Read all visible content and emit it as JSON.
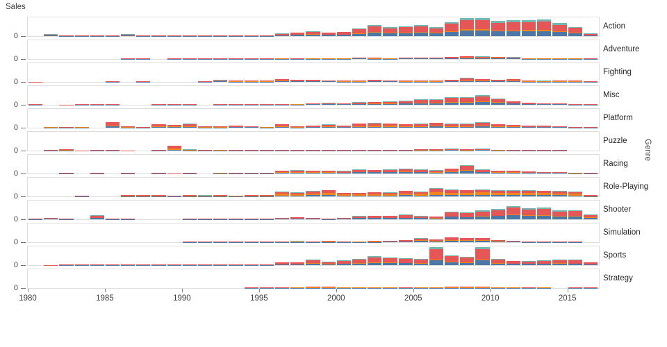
{
  "chart_data": {
    "type": "bar",
    "stacked": true,
    "description_visible_text_only": "Faceted stacked bar chart; one row per genre; only a 0 tick on each y axis",
    "y_axis": {
      "title": "Sales",
      "zero_tick_label": "0"
    },
    "facet_axis_title": "Genre",
    "x_axis": {
      "year_start": 1980,
      "year_end": 2016,
      "tick_labels": [
        "1980",
        "1985",
        "1990",
        "1995",
        "2000",
        "2005",
        "2010",
        "2015"
      ]
    },
    "legend_position": "none",
    "grid": false,
    "segments_bottom_to_top": [
      {
        "id": "segment-blue",
        "color": "#4c78a8"
      },
      {
        "id": "segment-orange",
        "color": "#f58518"
      },
      {
        "id": "segment-red",
        "color": "#e45756"
      },
      {
        "id": "segment-teal",
        "color": "#72b7b2"
      }
    ],
    "facets": [
      {
        "genre": "Action",
        "totals": [
          0.3,
          14.8,
          6.5,
          2.9,
          1.9,
          3.5,
          13.7,
          1.1,
          1.8,
          4.6,
          6.4,
          6.8,
          3.8,
          1.8,
          1.6,
          3.6,
          20.6,
          27.6,
          39.4,
          27.8,
          34.0,
          59.4,
          86.8,
          67.9,
          76.3,
          85.5,
          67.3,
          106.5,
          136.4,
          139.4,
          117.6,
          118.9,
          122.0,
          125.2,
          99.0,
          70.7,
          19.9
        ],
        "segment_fractions": [
          0.3,
          0.07,
          0.5,
          0.13
        ]
      },
      {
        "genre": "Adventure",
        "totals": [
          0,
          0,
          0,
          0.4,
          0,
          0,
          1.0,
          4.4,
          0.3,
          1.2,
          1.6,
          1.6,
          1.1,
          1.0,
          2.0,
          3.3,
          6.2,
          5.1,
          6.3,
          6.3,
          6.3,
          11.7,
          10.4,
          8.0,
          10.5,
          11.1,
          12.0,
          15.9,
          20.8,
          19.0,
          17.0,
          14.2,
          6.5,
          6.0,
          5.7,
          8.0,
          2.7
        ],
        "segment_fractions": [
          0.26,
          0.23,
          0.44,
          0.07
        ]
      },
      {
        "genre": "Fighting",
        "totals": [
          0.8,
          0,
          0,
          0,
          0,
          1.1,
          0,
          5.4,
          0,
          0.6,
          0.3,
          3.5,
          14.2,
          10.1,
          11.5,
          10.9,
          20.0,
          16.5,
          15.8,
          13.3,
          12.3,
          11.5,
          15.8,
          13.0,
          10.9,
          12.0,
          11.0,
          15.4,
          30.9,
          21.0,
          14.6,
          20.2,
          12.4,
          8.1,
          11.3,
          9.6,
          3.5
        ],
        "segment_fractions": [
          0.21,
          0.22,
          0.5,
          0.07
        ]
      },
      {
        "genre": "Misc",
        "totals": [
          2.7,
          0,
          0.9,
          2.1,
          1.5,
          1.2,
          0,
          0,
          1.4,
          1.3,
          1.2,
          0.7,
          1.6,
          1.2,
          1.4,
          2.0,
          4.3,
          8.0,
          12.6,
          14.0,
          11.9,
          19.7,
          23.6,
          25.4,
          30.4,
          42.7,
          43.7,
          57.8,
          56.4,
          71.5,
          50.0,
          28.0,
          15.0,
          11.6,
          9.3,
          5.8,
          1.3
        ],
        "segment_fractions": [
          0.3,
          0.1,
          0.49,
          0.11
        ]
      },
      {
        "genre": "Platform",
        "totals": [
          0,
          6.9,
          5.0,
          6.9,
          0.7,
          43.2,
          10.0,
          1.7,
          27.7,
          20.7,
          31.1,
          9.9,
          9.6,
          18.0,
          13.1,
          7.5,
          27.3,
          11.9,
          15.9,
          24.2,
          15.4,
          31.4,
          35.8,
          34.0,
          28.8,
          29.1,
          39.0,
          30.4,
          31.0,
          40.9,
          26.7,
          23.2,
          17.3,
          17.9,
          12.4,
          5.6,
          2.4
        ],
        "segment_fractions": [
          0.22,
          0.18,
          0.53,
          0.07
        ]
      },
      {
        "genre": "Puzzle",
        "totals": [
          0,
          2.2,
          13.0,
          0.8,
          3.1,
          3.2,
          0.8,
          0,
          5.6,
          37.8,
          8.2,
          4.6,
          6.9,
          2.3,
          3.4,
          1.1,
          2.7,
          2.1,
          3.3,
          4.4,
          3.0,
          2.5,
          5.1,
          2.6,
          4.5,
          9.3,
          9.2,
          13.7,
          10.2,
          13.9,
          7.7,
          5.0,
          2.7,
          1.3,
          1.0,
          0.6,
          0.1
        ],
        "segment_fractions": [
          0.2,
          0.22,
          0.53,
          0.05
        ]
      },
      {
        "genre": "Racing",
        "totals": [
          0,
          0.5,
          1.6,
          0.3,
          6.0,
          0.5,
          2.0,
          0.6,
          2.1,
          0.8,
          5.6,
          0.7,
          8.1,
          1.0,
          2.9,
          6.3,
          21.1,
          26.2,
          21.9,
          23.1,
          19.5,
          30.8,
          28.4,
          31.3,
          37.6,
          30.9,
          26.4,
          38.8,
          63.9,
          29.1,
          21.0,
          22.5,
          15.8,
          12.6,
          11.7,
          8.1,
          1.9
        ],
        "segment_fractions": [
          0.3,
          0.09,
          0.5,
          0.11
        ]
      },
      {
        "genre": "Role-Playing",
        "totals": [
          0,
          0,
          0,
          1.1,
          0.9,
          0.4,
          8.8,
          11.9,
          12.8,
          3.5,
          9.7,
          8.6,
          10.8,
          7.5,
          11.6,
          12.9,
          36.0,
          31.0,
          40.6,
          48.5,
          27.8,
          26.4,
          33.4,
          29.6,
          42.9,
          35.7,
          61.9,
          51.6,
          48.3,
          53.0,
          48.0,
          46.0,
          45.5,
          44.5,
          42.4,
          36.7,
          12.0
        ],
        "segment_fractions": [
          0.21,
          0.34,
          0.38,
          0.07
        ]
      },
      {
        "genre": "Shooter",
        "totals": [
          7.1,
          10.0,
          3.8,
          0.5,
          31.1,
          1.0,
          4.0,
          0.7,
          0.5,
          0.2,
          2.4,
          1.6,
          2.6,
          1.3,
          2.8,
          3.3,
          10.5,
          18.4,
          13.1,
          7.3,
          9.3,
          26.8,
          29.0,
          27.1,
          36.6,
          27.0,
          23.7,
          59.0,
          51.5,
          66.9,
          77.8,
          99.4,
          85.2,
          87.9,
          66.1,
          70.3,
          38.0
        ],
        "segment_fractions": [
          0.32,
          0.04,
          0.52,
          0.12
        ]
      },
      {
        "genre": "Simulation",
        "totals": [
          0,
          0.5,
          0,
          0,
          0,
          0,
          0,
          0.4,
          0,
          0,
          2.1,
          3.1,
          1.0,
          1.0,
          1.7,
          3.2,
          5.2,
          8.4,
          5.3,
          9.3,
          5.6,
          8.1,
          8.9,
          10.4,
          15.3,
          29.9,
          20.8,
          39.0,
          33.9,
          31.9,
          17.4,
          10.3,
          4.7,
          5.5,
          4.8,
          2.6,
          0.6
        ],
        "segment_fractions": [
          0.28,
          0.18,
          0.46,
          0.08
        ]
      },
      {
        "genre": "Sports",
        "totals": [
          0.5,
          0.8,
          1.1,
          3.2,
          6.2,
          2.0,
          3.6,
          4.4,
          3.0,
          3.4,
          5.0,
          3.1,
          4.6,
          1.0,
          6.5,
          3.1,
          22.3,
          22.1,
          41.9,
          26.8,
          35.9,
          45.9,
          66.7,
          58.3,
          54.7,
          49.5,
          136.2,
          74.8,
          63.8,
          138.5,
          45.0,
          33.0,
          31.5,
          37.3,
          42.1,
          40.8,
          23.0
        ],
        "segment_fractions": [
          0.26,
          0.06,
          0.57,
          0.11
        ]
      },
      {
        "genre": "Strategy",
        "totals": [
          0,
          0,
          0,
          0,
          0,
          0,
          0,
          0,
          0,
          0,
          0.1,
          0.9,
          0.2,
          0.3,
          1.1,
          1.7,
          3.4,
          7.0,
          10.2,
          9.4,
          7.5,
          5.6,
          5.6,
          7.4,
          3.5,
          5.4,
          5.4,
          8.8,
          8.9,
          9.2,
          7.4,
          6.1,
          3.3,
          6.1,
          0.9,
          1.8,
          1.1
        ],
        "segment_fractions": [
          0.25,
          0.28,
          0.4,
          0.07
        ]
      }
    ]
  }
}
